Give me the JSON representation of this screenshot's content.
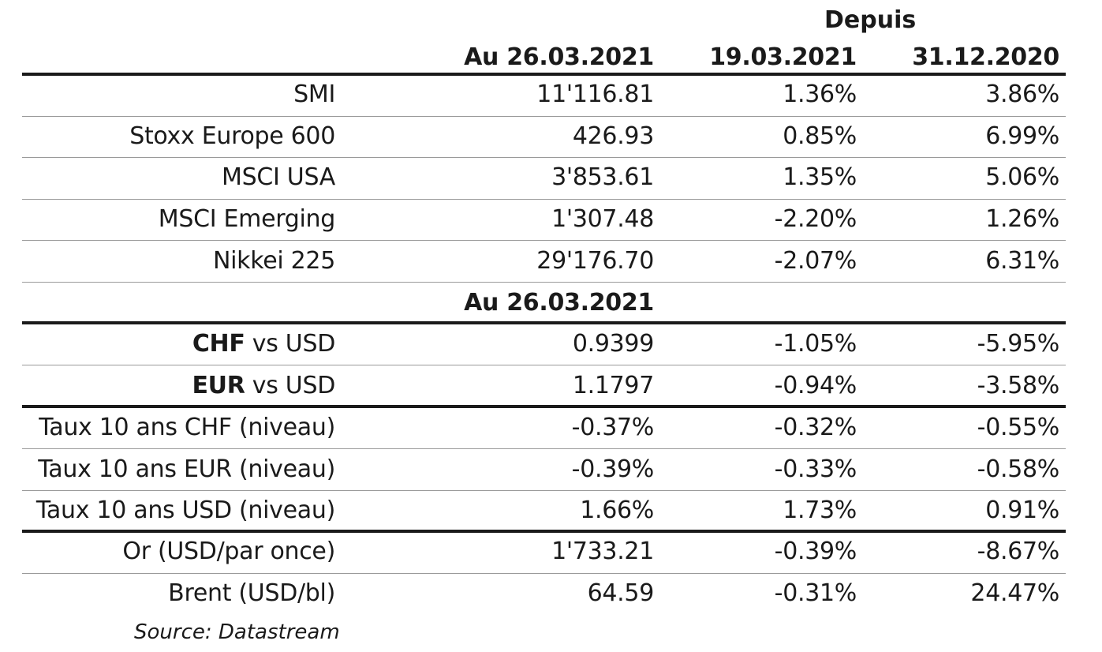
{
  "header": {
    "depuis": "Depuis",
    "col1": "Au 26.03.2021",
    "col2": "19.03.2021",
    "col3": "31.12.2020"
  },
  "indices": [
    {
      "label": "SMI",
      "v1": "11'116.81",
      "v2": "1.36%",
      "v3": "3.86%"
    },
    {
      "label": "Stoxx Europe 600",
      "v1": "426.93",
      "v2": "0.85%",
      "v3": "6.99%"
    },
    {
      "label": "MSCI USA",
      "v1": "3'853.61",
      "v2": "1.35%",
      "v3": "5.06%"
    },
    {
      "label": "MSCI Emerging",
      "v1": "1'307.48",
      "v2": "-2.20%",
      "v3": "1.26%"
    },
    {
      "label": "Nikkei 225",
      "v1": "29'176.70",
      "v2": "-2.07%",
      "v3": "6.31%"
    }
  ],
  "section2_header": "Au 26.03.2021",
  "currencies": [
    {
      "label_bold": "CHF",
      "label_rest": " vs USD",
      "v1": "0.9399",
      "v2": "-1.05%",
      "v3": "-5.95%"
    },
    {
      "label_bold": "EUR",
      "label_rest": " vs USD",
      "v1": "1.1797",
      "v2": "-0.94%",
      "v3": "-3.58%"
    }
  ],
  "rates": [
    {
      "label": "Taux 10 ans CHF (niveau)",
      "v1": "-0.37%",
      "v2": "-0.32%",
      "v3": "-0.55%"
    },
    {
      "label": "Taux 10 ans EUR (niveau)",
      "v1": "-0.39%",
      "v2": "-0.33%",
      "v3": "-0.58%"
    },
    {
      "label": "Taux 10 ans USD (niveau)",
      "v1": "1.66%",
      "v2": "1.73%",
      "v3": "0.91%"
    }
  ],
  "commodities": [
    {
      "label": "Or (USD/par once)",
      "v1": "1'733.21",
      "v2": "-0.39%",
      "v3": "-8.67%"
    },
    {
      "label": "Brent (USD/bl)",
      "v1": "64.59",
      "v2": "-0.31%",
      "v3": "24.47%"
    }
  ],
  "source": "Source: Datastream"
}
